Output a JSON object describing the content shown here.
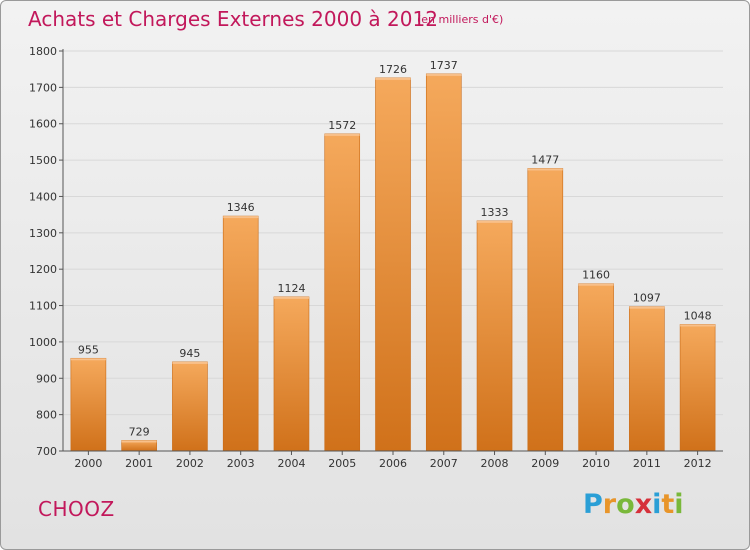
{
  "header": {
    "title": "Achats et Charges Externes 2000 à 2012",
    "subtitle": "(en milliers d'€)"
  },
  "footer": {
    "commune": "CHOOZ",
    "logo": {
      "letters": [
        "P",
        "r",
        "o",
        "x",
        "i",
        "t",
        "i"
      ],
      "colors": [
        "#2a9fd6",
        "#e8952a",
        "#79b83a",
        "#d6303a",
        "#2a9fd6",
        "#e8952a",
        "#79b83a"
      ]
    }
  },
  "colors": {
    "bar_top": "#f5a95c",
    "bar_bottom": "#d0711a",
    "title": "#c2185b",
    "grid": "#d8d8d8"
  },
  "chart_data": {
    "type": "bar",
    "categories": [
      "2000",
      "2001",
      "2002",
      "2003",
      "2004",
      "2005",
      "2006",
      "2007",
      "2008",
      "2009",
      "2010",
      "2011",
      "2012"
    ],
    "values": [
      955,
      729,
      945,
      1346,
      1124,
      1572,
      1726,
      1737,
      1333,
      1477,
      1160,
      1097,
      1048
    ],
    "ylim": [
      700,
      1800
    ],
    "yticks": [
      700,
      800,
      900,
      1000,
      1100,
      1200,
      1300,
      1400,
      1500,
      1600,
      1700,
      1800
    ],
    "grid": true
  }
}
